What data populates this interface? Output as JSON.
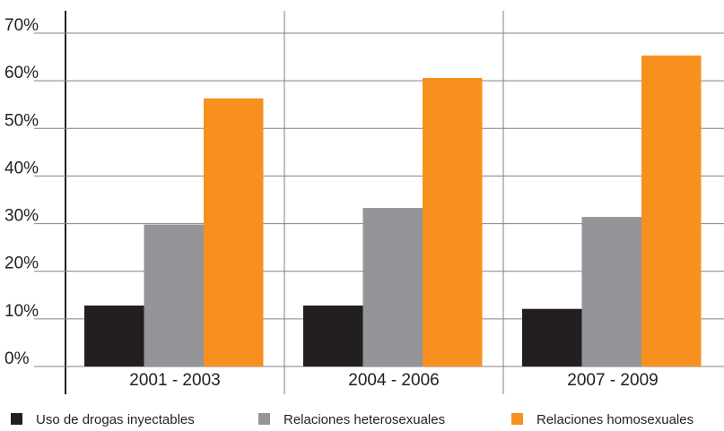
{
  "chart_data": {
    "type": "bar",
    "categories": [
      "2001 - 2003",
      "2004 - 2006",
      "2007 - 2009"
    ],
    "series": [
      {
        "name": "Uso de drogas inyectables",
        "color": "#231f20",
        "values": [
          12.8,
          12.8,
          12.1
        ]
      },
      {
        "name": "Relaciones heterosexuales",
        "color": "#939598",
        "values": [
          29.8,
          33.3,
          31.4
        ]
      },
      {
        "name": "Relaciones homosexuales",
        "color": "#f7901e",
        "values": [
          56.3,
          60.6,
          65.3
        ]
      }
    ],
    "ylim": [
      0,
      70
    ],
    "yticks": [
      {
        "value": 0,
        "label": "0%"
      },
      {
        "value": 10,
        "label": "10%"
      },
      {
        "value": 20,
        "label": "20%"
      },
      {
        "value": 30,
        "label": "30%"
      },
      {
        "value": 40,
        "label": "40%"
      },
      {
        "value": 50,
        "label": "50%"
      },
      {
        "value": 60,
        "label": "60%"
      },
      {
        "value": 70,
        "label": "70%"
      }
    ],
    "grid": true
  }
}
